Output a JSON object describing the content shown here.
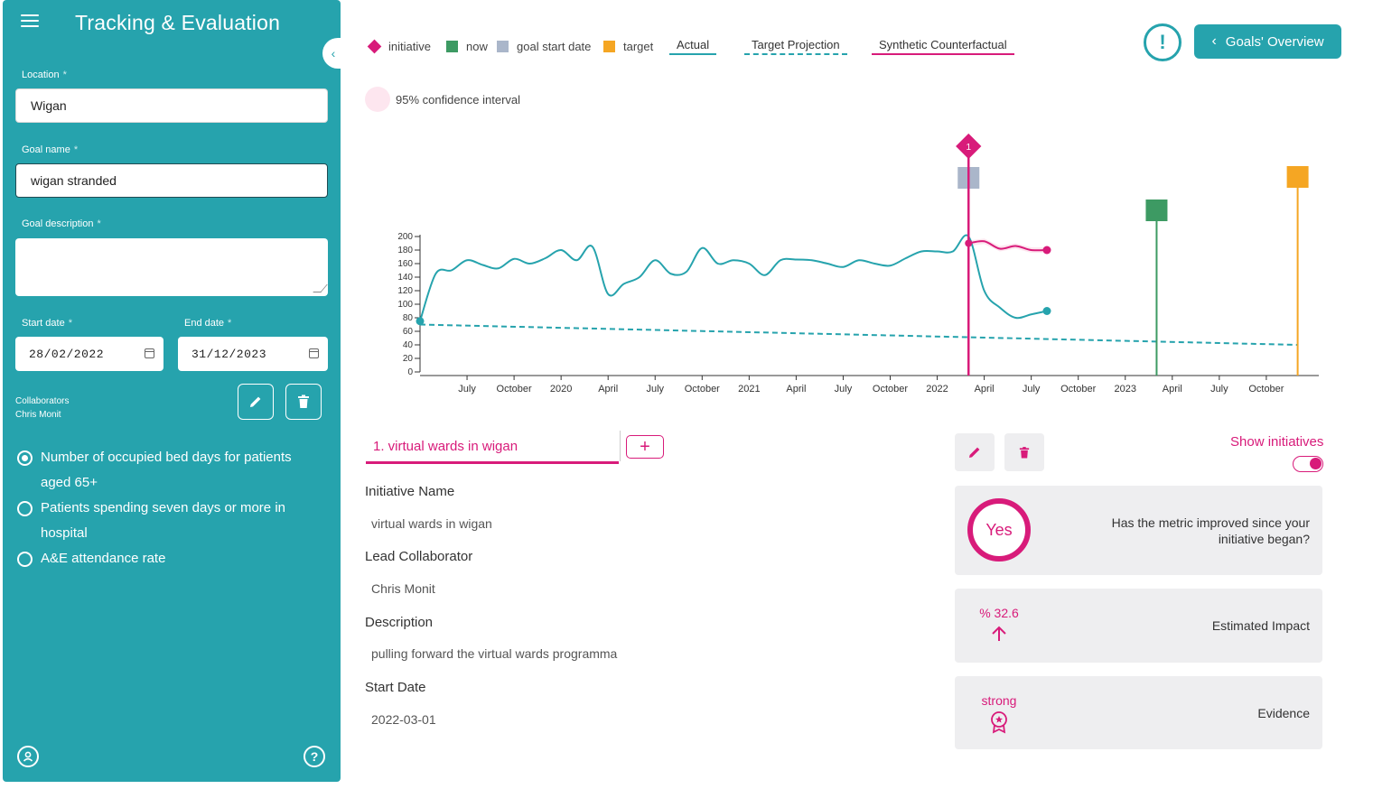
{
  "sidebar": {
    "title": "Tracking & Evaluation",
    "location_label": "Location",
    "location_value": "Wigan",
    "goal_name_label": "Goal name",
    "goal_name_value": "wigan stranded",
    "goal_description_label": "Goal description",
    "goal_description_value": "",
    "required_mark": "*",
    "start_date_label": "Start date",
    "start_date_value": "28/02/2022",
    "end_date_label": "End date",
    "end_date_value": "31/12/2023",
    "collaborators_label": "Collaborators",
    "collaborators_value": "Chris Monit",
    "metrics": [
      {
        "label": "Number of occupied bed days for patients aged 65+",
        "selected": true
      },
      {
        "label": "Patients spending seven days or more in hospital",
        "selected": false
      },
      {
        "label": "A&E attendance rate",
        "selected": false
      }
    ]
  },
  "legend": {
    "initiative": "initiative",
    "now": "now",
    "goal_start_date": "goal start date",
    "target": "target",
    "actual": "Actual",
    "target_projection": "Target Projection",
    "synthetic_counterfactual": "Synthetic Counterfactual",
    "confidence_interval": "95% confidence interval"
  },
  "header": {
    "alert_icon": "!",
    "overview_button": "Goals' Overview"
  },
  "colors": {
    "teal": "#26a3ad",
    "magenta": "#d81b7a",
    "now_green": "#3d9a63",
    "goal_start_grey": "#aab6ca",
    "target_orange": "#f5a623"
  },
  "chart_data": {
    "type": "line",
    "x_tick_labels": [
      "July",
      "October",
      "2020",
      "April",
      "July",
      "October",
      "2021",
      "April",
      "July",
      "October",
      "2022",
      "April",
      "July",
      "October",
      "2023",
      "April",
      "July",
      "October"
    ],
    "y_ticks": [
      0,
      20,
      40,
      60,
      80,
      100,
      120,
      140,
      160,
      180,
      200
    ],
    "ylim": [
      0,
      200
    ],
    "series": [
      {
        "name": "Actual",
        "x": [
          "2019-04",
          "2019-05",
          "2019-06",
          "2019-07",
          "2019-08",
          "2019-09",
          "2019-10",
          "2019-11",
          "2019-12",
          "2020-01",
          "2020-02",
          "2020-03",
          "2020-04",
          "2020-05",
          "2020-06",
          "2020-07",
          "2020-08",
          "2020-09",
          "2020-10",
          "2020-11",
          "2020-12",
          "2021-01",
          "2021-02",
          "2021-03",
          "2021-04",
          "2021-05",
          "2021-06",
          "2021-07",
          "2021-08",
          "2021-09",
          "2021-10",
          "2021-11",
          "2021-12",
          "2022-01",
          "2022-02",
          "2022-03",
          "2022-04",
          "2022-05",
          "2022-06",
          "2022-07",
          "2022-08"
        ],
        "values": [
          75,
          145,
          150,
          165,
          158,
          153,
          167,
          160,
          168,
          180,
          165,
          185,
          115,
          130,
          140,
          165,
          145,
          148,
          183,
          160,
          165,
          160,
          143,
          165,
          166,
          165,
          160,
          155,
          165,
          160,
          157,
          168,
          178,
          178,
          178,
          200,
          120,
          95,
          80,
          85,
          90
        ]
      },
      {
        "name": "Target Projection",
        "x": [
          "2019-04",
          "2023-12"
        ],
        "values": [
          70,
          40
        ]
      },
      {
        "name": "Synthetic Counterfactual",
        "x": [
          "2022-03",
          "2022-04",
          "2022-05",
          "2022-06",
          "2022-07",
          "2022-08"
        ],
        "values": [
          190,
          193,
          182,
          186,
          180,
          180
        ]
      }
    ],
    "markers": {
      "initiative": {
        "date": "2022-03",
        "label": "1"
      },
      "goal_start_date": "2022-03",
      "now": "2023-03",
      "target": "2023-12"
    }
  },
  "initiative": {
    "tab_label": "1. virtual wards in wigan",
    "add_label": "+",
    "name_label": "Initiative Name",
    "name_value": "virtual wards in wigan",
    "lead_label": "Lead Collaborator",
    "lead_value": "Chris Monit",
    "description_label": "Description",
    "description_value": "pulling forward the virtual wards programma",
    "start_label": "Start Date",
    "start_value": "2022-03-01"
  },
  "evaluation": {
    "show_initiatives_label": "Show initiatives",
    "show_initiatives_on": true,
    "improved_answer": "Yes",
    "improved_question": "Has the metric improved since your initiative began?",
    "impact_value": "% 32.6",
    "impact_label": "Estimated Impact",
    "evidence_value": "strong",
    "evidence_label": "Evidence"
  }
}
